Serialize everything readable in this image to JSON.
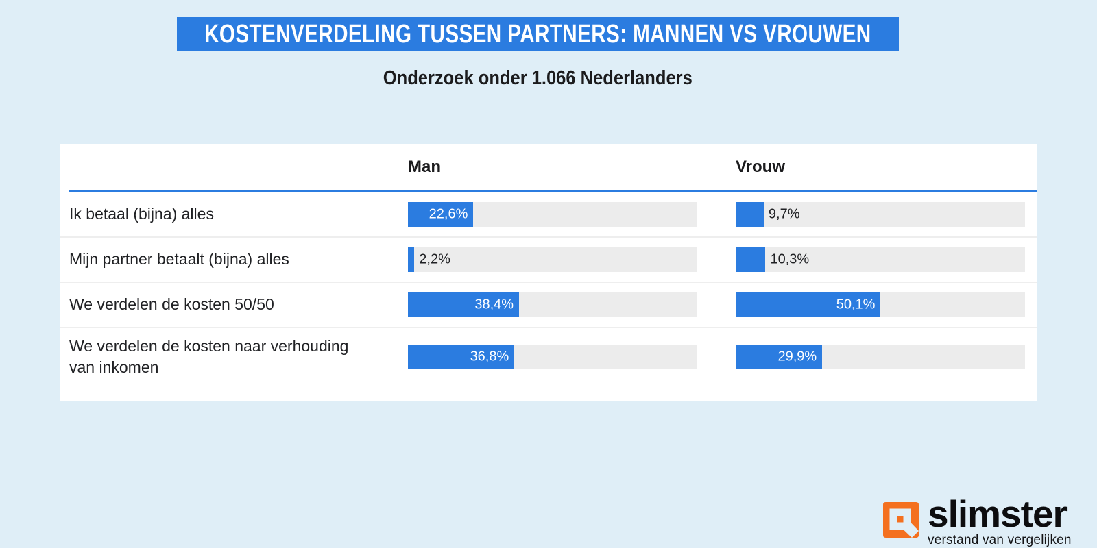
{
  "header": {
    "title": "KOSTENVERDELING TUSSEN PARTNERS: MANNEN VS VROUWEN",
    "subtitle": "Onderzoek onder 1.066 Nederlanders"
  },
  "table": {
    "columns": [
      "Man",
      "Vrouw"
    ],
    "rows": [
      {
        "label": "Ik betaal (bijna) alles",
        "man": "22,6%",
        "vrouw": "9,7%"
      },
      {
        "label": "Mijn partner betaalt (bijna) alles",
        "man": "2,2%",
        "vrouw": "10,3%"
      },
      {
        "label": "We verdelen de kosten 50/50",
        "man": "38,4%",
        "vrouw": "50,1%"
      },
      {
        "label": "We verdelen de kosten naar verhouding van inkomen",
        "man": "36,8%",
        "vrouw": "29,9%"
      }
    ]
  },
  "chart_data": {
    "type": "bar",
    "title": "KOSTENVERDELING TUSSEN PARTNERS: MANNEN VS VROUWEN",
    "subtitle": "Onderzoek onder 1.066 Nederlanders",
    "categories": [
      "Ik betaal (bijna) alles",
      "Mijn partner betaalt (bijna) alles",
      "We verdelen de kosten 50/50",
      "We verdelen de kosten naar verhouding van inkomen"
    ],
    "series": [
      {
        "name": "Man",
        "values": [
          22.6,
          2.2,
          38.4,
          36.8
        ]
      },
      {
        "name": "Vrouw",
        "values": [
          9.7,
          10.3,
          50.1,
          29.9
        ]
      }
    ],
    "value_labels": [
      [
        "22,6%",
        "2,2%",
        "38,4%",
        "36,8%"
      ],
      [
        "9,7%",
        "10,3%",
        "50,1%",
        "29,9%"
      ]
    ],
    "value_suffix": "%",
    "xlim": [
      0,
      100
    ],
    "orientation": "horizontal",
    "grid": false,
    "legend_position": "column-headers",
    "bar_color": "#2b7ce0",
    "track_color": "#ececec"
  },
  "footer": {
    "brand": "slimster",
    "tagline": "verstand van vergelijken"
  },
  "colors": {
    "background": "#dfeef7",
    "brand_blue": "#2b7ce0",
    "logo_orange": "#f4701f",
    "track_gray": "#ececec",
    "text_dark": "#202124",
    "card_white": "#ffffff"
  }
}
